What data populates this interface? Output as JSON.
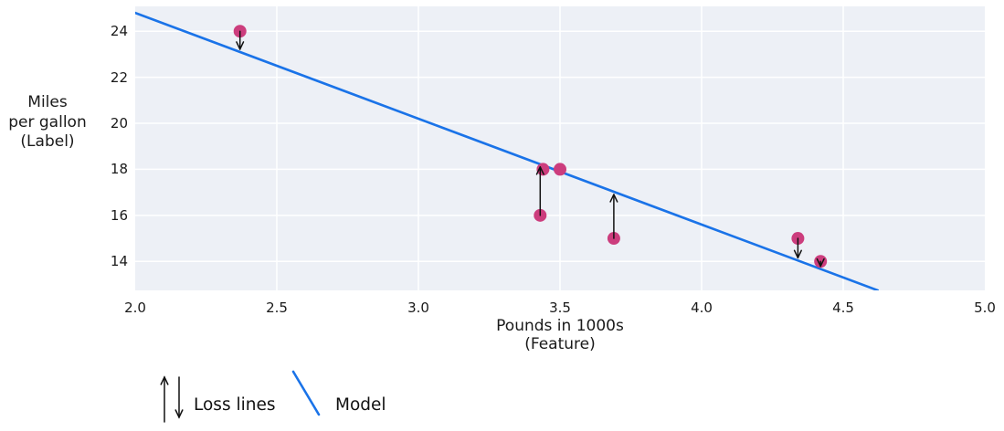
{
  "figure": {
    "y_axis_label_lines": [
      "Miles",
      "per gallon",
      "(Label)"
    ],
    "x_axis_label_lines": [
      "Pounds in 1000s",
      "(Feature)"
    ],
    "legend": {
      "loss_label": "Loss lines",
      "model_label": "Model"
    }
  },
  "chart_data": {
    "type": "scatter",
    "title": "",
    "xlabel": "Pounds in 1000s (Feature)",
    "ylabel": "Miles per gallon (Label)",
    "xlim": [
      2.0,
      5.0
    ],
    "ylim": [
      12.74,
      25.08
    ],
    "grid": true,
    "legend_position": "bottom-left",
    "x_ticks": [
      {
        "value": 2.0,
        "label": "2.0"
      },
      {
        "value": 2.5,
        "label": "2.5"
      },
      {
        "value": 3.0,
        "label": "3.0"
      },
      {
        "value": 3.5,
        "label": "3.5"
      },
      {
        "value": 4.0,
        "label": "4.0"
      },
      {
        "value": 4.5,
        "label": "4.5"
      },
      {
        "value": 5.0,
        "label": "5.0"
      }
    ],
    "y_ticks": [
      {
        "value": 24,
        "label": "24"
      },
      {
        "value": 22,
        "label": "22"
      },
      {
        "value": 20,
        "label": "20"
      },
      {
        "value": 18,
        "label": "18"
      },
      {
        "value": 16,
        "label": "16"
      },
      {
        "value": 14,
        "label": "14"
      }
    ],
    "points": [
      {
        "x": 2.37,
        "y": 24,
        "loss_arrow": "down"
      },
      {
        "x": 3.44,
        "y": 18,
        "loss_arrow": null
      },
      {
        "x": 3.5,
        "y": 18,
        "loss_arrow": null
      },
      {
        "x": 3.43,
        "y": 16,
        "loss_arrow": "up"
      },
      {
        "x": 3.69,
        "y": 15,
        "loss_arrow": "up"
      },
      {
        "x": 4.34,
        "y": 15,
        "loss_arrow": "down"
      },
      {
        "x": 4.42,
        "y": 14,
        "loss_arrow": "down"
      }
    ],
    "model_line": {
      "slope": -4.6,
      "intercept": 34.0
    },
    "colors": {
      "point": "#cc3d7d",
      "model": "#1a73e8",
      "plot_bg": "#edf0f6",
      "grid": "#ffffff",
      "arrow": "#111111",
      "text": "#1a1a1a"
    }
  }
}
